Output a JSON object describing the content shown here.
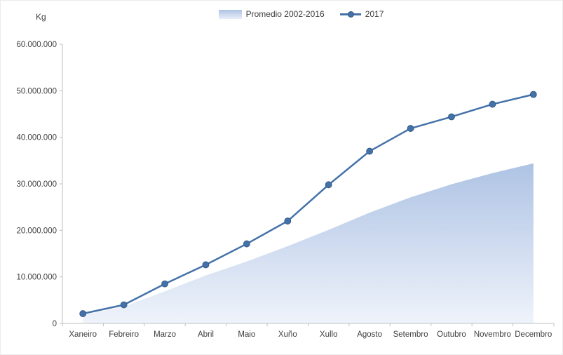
{
  "chart": {
    "unit_label": "Kg",
    "legend": [
      {
        "label": "Promedio 2002-2016",
        "type": "area",
        "color": "#aec3e4"
      },
      {
        "label": "2017",
        "type": "line-marker",
        "color": "#4472a8"
      }
    ]
  },
  "chart_data": {
    "type": "line",
    "title": "",
    "xlabel": "",
    "ylabel": "Kg",
    "categories": [
      "Xaneiro",
      "Febreiro",
      "Marzo",
      "Abril",
      "Maio",
      "Xuño",
      "Xullo",
      "Agosto",
      "Setembro",
      "Outubro",
      "Novembro",
      "Decembro"
    ],
    "series": [
      {
        "name": "Promedio 2002-2016",
        "type": "area",
        "color": "#aec3e4",
        "values": [
          1800000,
          3600000,
          6900000,
          10300000,
          13300000,
          16600000,
          20100000,
          23800000,
          27100000,
          29900000,
          32300000,
          34400000
        ]
      },
      {
        "name": "2017",
        "type": "line",
        "color": "#4472a8",
        "values": [
          2100000,
          4000000,
          8500000,
          12600000,
          17100000,
          22000000,
          29800000,
          37000000,
          41900000,
          44400000,
          47100000,
          49200000
        ]
      }
    ],
    "ylim": [
      0,
      60000000
    ],
    "ytick_step": 10000000,
    "ytick_labels": [
      "0",
      "10.000.000",
      "20.000.000",
      "30.000.000",
      "40.000.000",
      "50.000.000",
      "60.000.000"
    ],
    "grid": false,
    "legend_position": "top-center"
  }
}
